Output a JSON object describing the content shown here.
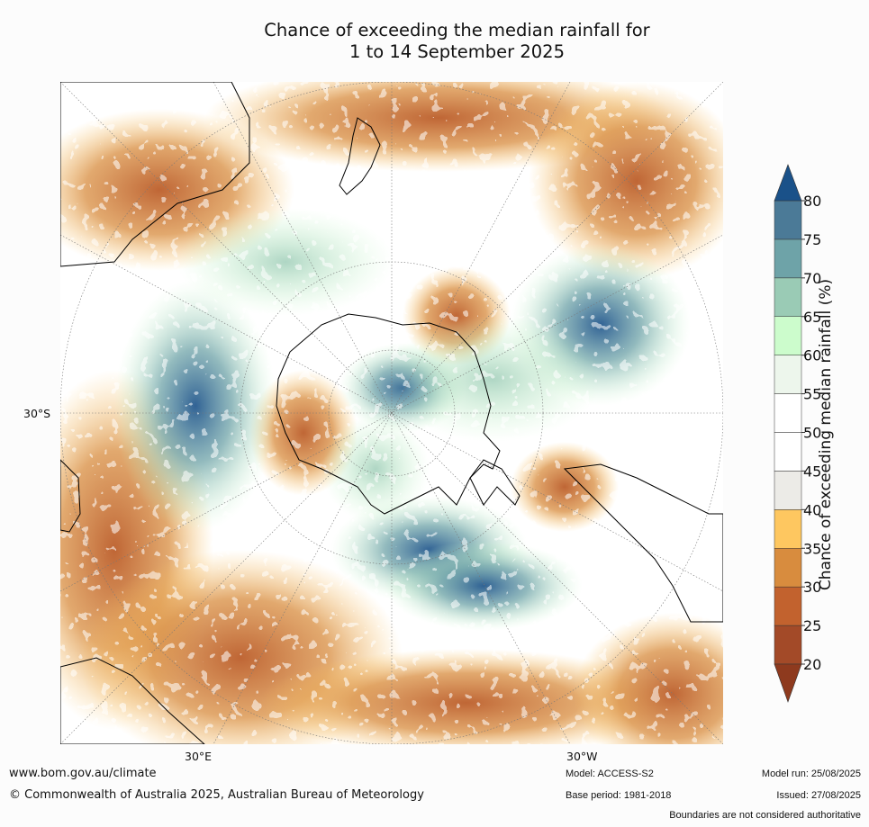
{
  "title": {
    "line1": "Chance of exceeding the median rainfall for",
    "line2": "1 to 14 September 2025"
  },
  "map": {
    "projection": "south-polar-stereographic",
    "lat_label": "30°S",
    "lon_labels": [
      "30°E",
      "30°W"
    ]
  },
  "colorbar": {
    "label": "Chance of exceeding median rainfall (%)",
    "ticks": [
      "20",
      "25",
      "30",
      "35",
      "40",
      "45",
      "50",
      "55",
      "60",
      "65",
      "70",
      "75",
      "80"
    ],
    "colors": [
      "#a34a28",
      "#c2622e",
      "#d88c3e",
      "#fec760",
      "#ecebe7",
      "#ffffff",
      "#ffffff",
      "#edf6ec",
      "#ccfccc",
      "#9acbb5",
      "#6ea3a8",
      "#4b7a97"
    ],
    "under_color": "#8e3a1e",
    "over_color": "#1a5189"
  },
  "footer": {
    "url": "www.bom.gov.au/climate",
    "copyright": "© Commonwealth of Australia 2025, Australian Bureau of Meteorology",
    "model": "Model: ACCESS-S2",
    "model_run": "Model run: 25/08/2025",
    "base_period": "Base period: 1981-2018",
    "issued": "Issued: 27/08/2025",
    "disclaimer": "Boundaries are not considered authoritative"
  }
}
